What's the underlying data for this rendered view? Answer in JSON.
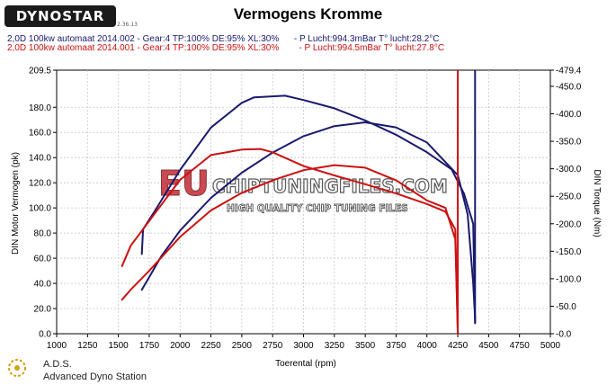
{
  "header": {
    "logo_text": "DYNOSTAR",
    "logo_sub": "2.36.13",
    "title": "Vermogens Kromme"
  },
  "runs": [
    {
      "label": "2,0D 100kw automaat 2014.002 - Gear:4 TP:100% DE:95% XL:30%      - P Lucht:994.3mBar T° lucht:28.2°C",
      "color": "#1a1a6e"
    },
    {
      "label": "2,0D 100kw automaat 2014.001 - Gear:4 TP:100% DE:95% XL:30%        - P Lucht:994.5mBar T° lucht:27.8°C",
      "color": "#cc1111"
    }
  ],
  "watermark": {
    "brand_a": "EU",
    "brand_b": "CHIPTUNINGFILES.COM",
    "tagline": "HIGH QUALITY CHIP TUNING FILES"
  },
  "footer": {
    "ads_name": "A.D.S.",
    "ads_full": "Advanced Dyno Station"
  },
  "colors": {
    "blue": "#1a1a6e",
    "red": "#cc1111",
    "plot_bg": "#ffffff"
  },
  "chart_data": {
    "type": "line",
    "xlabel": "Toerental (rpm)",
    "ylabel_left": "DIN Motor Vermogen (pk)",
    "ylabel_right": "DIN Torque (Nm)",
    "xlim": [
      1000,
      5000
    ],
    "ylim_left": [
      0,
      209.5
    ],
    "ylim_right": [
      0,
      479.4
    ],
    "x_ticks": [
      1000,
      1250,
      1500,
      1750,
      2000,
      2250,
      2500,
      2750,
      3000,
      3250,
      3500,
      3750,
      4000,
      4250,
      4500,
      4750,
      5000
    ],
    "y_left_ticks": [
      0.0,
      20.0,
      40.0,
      60.0,
      80.0,
      100.0,
      120.0,
      140.0,
      160.0,
      180.0,
      209.5
    ],
    "y_right_ticks": [
      0.0,
      50.0,
      100.0,
      150.0,
      200.0,
      250.0,
      300.0,
      350.0,
      400.0,
      450.0,
      479.4
    ],
    "grid": true,
    "series": [
      {
        "color": "#1a1a6e",
        "axis": "left",
        "x": [
          1690,
          1750,
          1850,
          2000,
          2250,
          2500,
          2750,
          3000,
          3250,
          3500,
          3750,
          4000,
          4250,
          4330,
          4375,
          4390
        ],
        "y": [
          35,
          45,
          62,
          82,
          108,
          128,
          144,
          157,
          165,
          168,
          164,
          152,
          126,
          95,
          40,
          12
        ]
      },
      {
        "color": "#1a1a6e",
        "axis": "right",
        "x": [
          1690,
          1700,
          1800,
          2000,
          2250,
          2500,
          2600,
          2850,
          3000,
          3250,
          3500,
          3750,
          4000,
          4200,
          4300,
          4375,
          4390
        ],
        "y": [
          145,
          190,
          225,
          298,
          375,
          420,
          430,
          433,
          425,
          410,
          388,
          362,
          330,
          299,
          255,
          200,
          19
        ]
      },
      {
        "color": "#cc1111",
        "axis": "left",
        "x": [
          1530,
          1600,
          1750,
          2000,
          2250,
          2500,
          2750,
          3000,
          3250,
          3500,
          3750,
          4000,
          4150,
          4230,
          4250
        ],
        "y": [
          27,
          35,
          50,
          77,
          98,
          112,
          122,
          130,
          134,
          132,
          122,
          106,
          100,
          75,
          0
        ]
      },
      {
        "color": "#cc1111",
        "axis": "right",
        "x": [
          1530,
          1600,
          1750,
          2000,
          2250,
          2500,
          2650,
          2750,
          3000,
          3250,
          3500,
          3750,
          4000,
          4150,
          4230,
          4250
        ],
        "y": [
          123,
          160,
          205,
          280,
          325,
          335,
          336,
          330,
          305,
          288,
          272,
          255,
          236,
          222,
          190,
          0
        ]
      }
    ]
  }
}
